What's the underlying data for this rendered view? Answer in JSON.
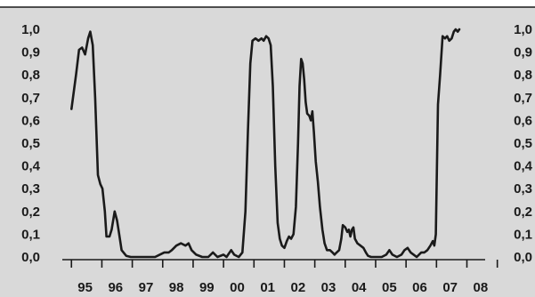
{
  "colors": {
    "background": "#d9d9d9",
    "line": "#1a1a1a",
    "frame": "#1a1a1a"
  },
  "chart_data": {
    "type": "line",
    "title": "",
    "xlabel": "",
    "ylabel": "",
    "ylim": [
      0,
      1
    ],
    "xlim": [
      1994.7,
      2008.6
    ],
    "grid": false,
    "legend": "none",
    "y_ticks": [
      "0,0",
      "0,1",
      "0,2",
      "0,3",
      "0,4",
      "0,5",
      "0,6",
      "0,7",
      "0,8",
      "0,9",
      "1,0"
    ],
    "y_tick_values": [
      0,
      0.1,
      0.2,
      0.3,
      0.4,
      0.5,
      0.6,
      0.7,
      0.8,
      0.9,
      1.0
    ],
    "x_ticks": [
      "95",
      "96",
      "97",
      "98",
      "99",
      "00",
      "01",
      "02",
      "03",
      "04",
      "05",
      "06",
      "07",
      "08"
    ],
    "x_tick_values": [
      1995,
      1996,
      1997,
      1998,
      1999,
      2000,
      2001,
      2002,
      2003,
      2004,
      2005,
      2006,
      2007,
      2008
    ],
    "series": [
      {
        "points": [
          [
            1995.0,
            0.65
          ],
          [
            1995.15,
            0.8
          ],
          [
            1995.25,
            0.91
          ],
          [
            1995.35,
            0.92
          ],
          [
            1995.45,
            0.89
          ],
          [
            1995.55,
            0.96
          ],
          [
            1995.62,
            0.99
          ],
          [
            1995.7,
            0.93
          ],
          [
            1995.78,
            0.7
          ],
          [
            1995.87,
            0.36
          ],
          [
            1995.95,
            0.32
          ],
          [
            1996.02,
            0.3
          ],
          [
            1996.1,
            0.2
          ],
          [
            1996.15,
            0.09
          ],
          [
            1996.25,
            0.09
          ],
          [
            1996.32,
            0.12
          ],
          [
            1996.42,
            0.2
          ],
          [
            1996.5,
            0.16
          ],
          [
            1996.57,
            0.1
          ],
          [
            1996.65,
            0.03
          ],
          [
            1996.8,
            0.005
          ],
          [
            1996.95,
            0.0
          ],
          [
            1997.3,
            0.0
          ],
          [
            1997.6,
            0.0
          ],
          [
            1997.75,
            0.0
          ],
          [
            1997.9,
            0.01
          ],
          [
            1998.05,
            0.02
          ],
          [
            1998.2,
            0.02
          ],
          [
            1998.3,
            0.03
          ],
          [
            1998.45,
            0.05
          ],
          [
            1998.6,
            0.06
          ],
          [
            1998.75,
            0.05
          ],
          [
            1998.85,
            0.06
          ],
          [
            1998.95,
            0.03
          ],
          [
            1999.1,
            0.01
          ],
          [
            1999.3,
            0.0
          ],
          [
            1999.5,
            0.0
          ],
          [
            1999.65,
            0.02
          ],
          [
            1999.8,
            0.0
          ],
          [
            2000.0,
            0.01
          ],
          [
            2000.1,
            0.0
          ],
          [
            2000.25,
            0.03
          ],
          [
            2000.35,
            0.01
          ],
          [
            2000.5,
            0.0
          ],
          [
            2000.62,
            0.02
          ],
          [
            2000.72,
            0.2
          ],
          [
            2000.8,
            0.55
          ],
          [
            2000.88,
            0.85
          ],
          [
            2000.95,
            0.95
          ],
          [
            2001.05,
            0.96
          ],
          [
            2001.15,
            0.95
          ],
          [
            2001.25,
            0.96
          ],
          [
            2001.32,
            0.95
          ],
          [
            2001.4,
            0.97
          ],
          [
            2001.48,
            0.96
          ],
          [
            2001.55,
            0.93
          ],
          [
            2001.62,
            0.75
          ],
          [
            2001.7,
            0.4
          ],
          [
            2001.78,
            0.15
          ],
          [
            2001.85,
            0.08
          ],
          [
            2001.92,
            0.05
          ],
          [
            2002.0,
            0.04
          ],
          [
            2002.08,
            0.07
          ],
          [
            2002.15,
            0.09
          ],
          [
            2002.22,
            0.08
          ],
          [
            2002.3,
            0.1
          ],
          [
            2002.38,
            0.22
          ],
          [
            2002.45,
            0.5
          ],
          [
            2002.5,
            0.75
          ],
          [
            2002.55,
            0.87
          ],
          [
            2002.6,
            0.85
          ],
          [
            2002.65,
            0.78
          ],
          [
            2002.7,
            0.68
          ],
          [
            2002.75,
            0.63
          ],
          [
            2002.82,
            0.62
          ],
          [
            2002.87,
            0.6
          ],
          [
            2002.92,
            0.64
          ],
          [
            2002.97,
            0.55
          ],
          [
            2003.03,
            0.42
          ],
          [
            2003.1,
            0.33
          ],
          [
            2003.17,
            0.22
          ],
          [
            2003.25,
            0.12
          ],
          [
            2003.32,
            0.06
          ],
          [
            2003.4,
            0.03
          ],
          [
            2003.5,
            0.03
          ],
          [
            2003.58,
            0.02
          ],
          [
            2003.65,
            0.01
          ],
          [
            2003.72,
            0.02
          ],
          [
            2003.8,
            0.03
          ],
          [
            2003.87,
            0.08
          ],
          [
            2003.92,
            0.14
          ],
          [
            2004.0,
            0.13
          ],
          [
            2004.07,
            0.11
          ],
          [
            2004.12,
            0.12
          ],
          [
            2004.17,
            0.09
          ],
          [
            2004.22,
            0.12
          ],
          [
            2004.27,
            0.13
          ],
          [
            2004.32,
            0.08
          ],
          [
            2004.4,
            0.06
          ],
          [
            2004.5,
            0.05
          ],
          [
            2004.6,
            0.04
          ],
          [
            2004.68,
            0.02
          ],
          [
            2004.75,
            0.005
          ],
          [
            2004.85,
            0.0
          ],
          [
            2005.0,
            0.0
          ],
          [
            2005.2,
            0.0
          ],
          [
            2005.35,
            0.01
          ],
          [
            2005.45,
            0.03
          ],
          [
            2005.55,
            0.01
          ],
          [
            2005.7,
            0.0
          ],
          [
            2005.85,
            0.01
          ],
          [
            2005.95,
            0.03
          ],
          [
            2006.05,
            0.04
          ],
          [
            2006.15,
            0.02
          ],
          [
            2006.25,
            0.01
          ],
          [
            2006.35,
            0.0
          ],
          [
            2006.5,
            0.02
          ],
          [
            2006.6,
            0.02
          ],
          [
            2006.7,
            0.03
          ],
          [
            2006.8,
            0.05
          ],
          [
            2006.88,
            0.07
          ],
          [
            2006.93,
            0.05
          ],
          [
            2006.98,
            0.1
          ],
          [
            2007.05,
            0.67
          ],
          [
            2007.12,
            0.8
          ],
          [
            2007.2,
            0.97
          ],
          [
            2007.28,
            0.96
          ],
          [
            2007.35,
            0.97
          ],
          [
            2007.42,
            0.95
          ],
          [
            2007.5,
            0.96
          ],
          [
            2007.57,
            0.99
          ],
          [
            2007.63,
            1.0
          ],
          [
            2007.7,
            0.99
          ],
          [
            2007.75,
            1.0
          ]
        ]
      }
    ]
  }
}
